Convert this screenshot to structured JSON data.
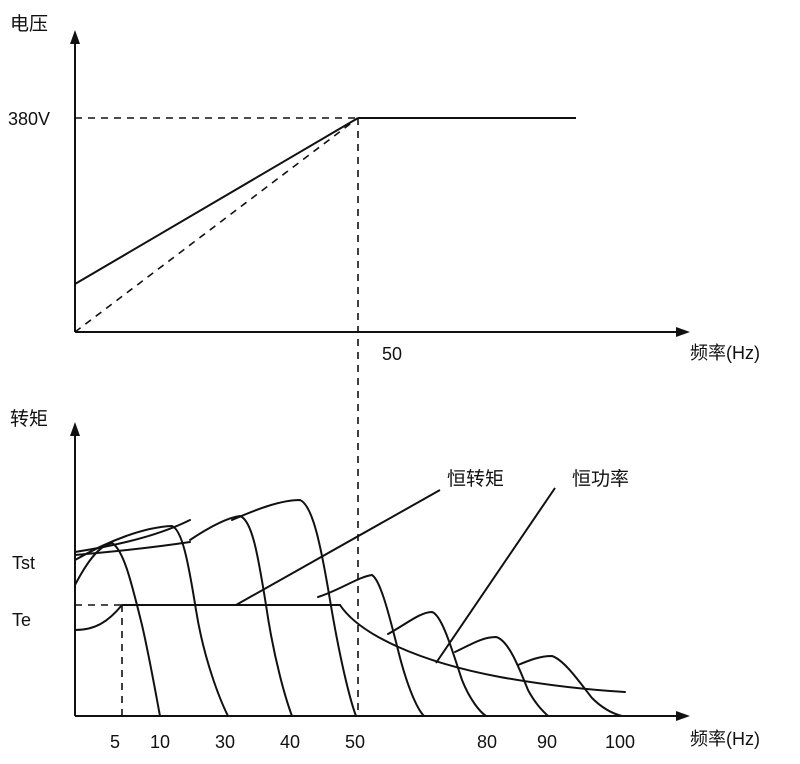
{
  "voltage_panel": {
    "y_label": "电压",
    "x_label": "频率(Hz)",
    "voltage_tick": "380V",
    "freq_tick": "50"
  },
  "torque_panel": {
    "y_label": "转矩",
    "x_label": "频率(Hz)",
    "tst_label": "Tst",
    "te_label": "Te",
    "freq_ticks": [
      "5",
      "10",
      "30",
      "40",
      "50",
      "80",
      "90",
      "100"
    ],
    "callout_constant_torque": "恒转矩",
    "callout_constant_power": "恒功率"
  },
  "colors": {
    "ink": "#111111",
    "background": "#ffffff"
  }
}
